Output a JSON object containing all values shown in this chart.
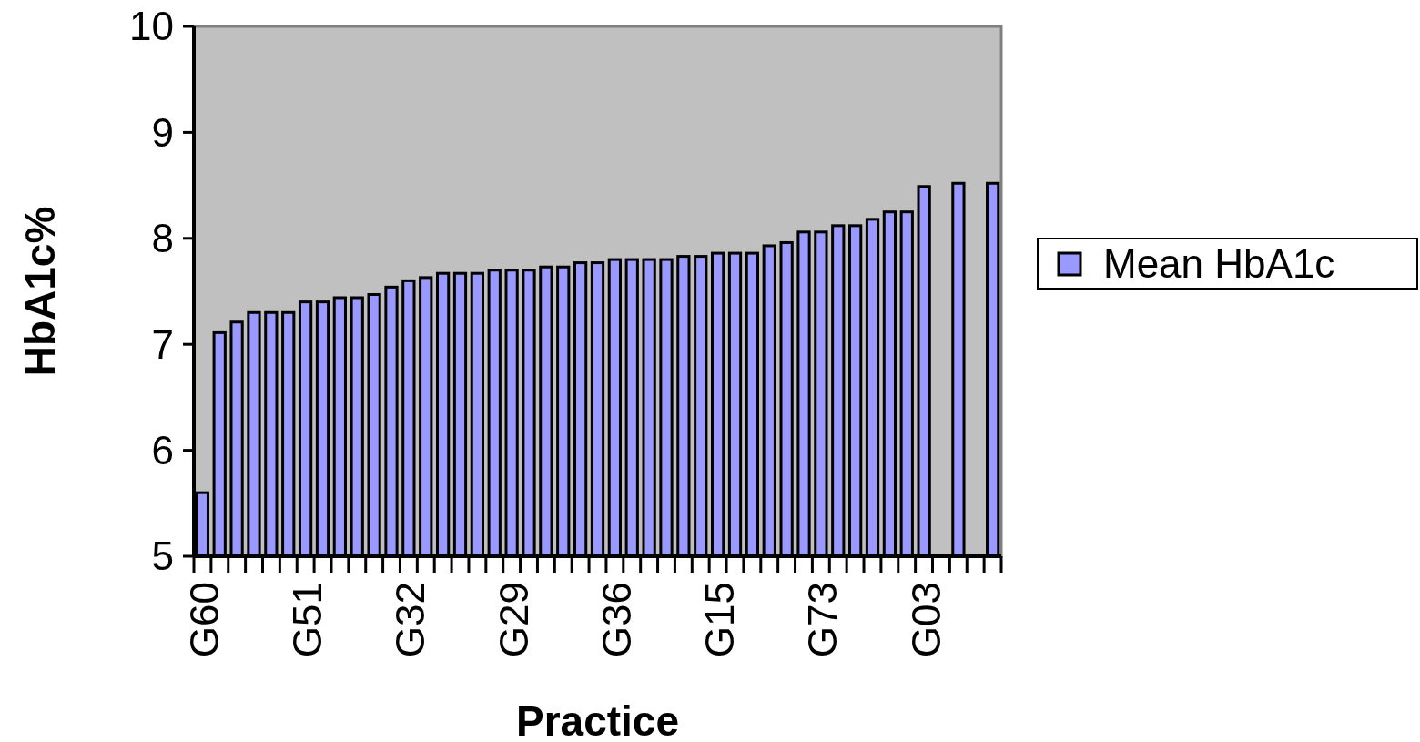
{
  "chart_data": {
    "type": "bar",
    "xlabel": "Practice",
    "ylabel": "HbA1c%",
    "categories": [
      "G60",
      null,
      null,
      null,
      null,
      null,
      "G51",
      null,
      null,
      null,
      null,
      null,
      "G32",
      null,
      null,
      null,
      null,
      null,
      "G29",
      null,
      null,
      null,
      null,
      null,
      "G36",
      null,
      null,
      null,
      null,
      null,
      "G15",
      null,
      null,
      null,
      null,
      null,
      "G73",
      null,
      null,
      null,
      null,
      null,
      "G03",
      null,
      null,
      null,
      null
    ],
    "series": [
      {
        "name": "Mean HbA1c",
        "color": "#9999ff",
        "values": [
          5.6,
          7.11,
          7.21,
          7.3,
          7.3,
          7.3,
          7.4,
          7.4,
          7.44,
          7.44,
          7.47,
          7.54,
          7.6,
          7.63,
          7.67,
          7.67,
          7.67,
          7.7,
          7.7,
          7.7,
          7.73,
          7.73,
          7.77,
          7.77,
          7.8,
          7.8,
          7.8,
          7.8,
          7.83,
          7.83,
          7.86,
          7.86,
          7.86,
          7.93,
          7.96,
          8.06,
          8.06,
          8.12,
          8.12,
          8.18,
          8.25,
          8.25,
          8.49,
          null,
          8.52,
          null,
          8.52
        ]
      }
    ],
    "ylim": [
      5,
      10
    ],
    "yticks": [
      5,
      6,
      7,
      8,
      9,
      10
    ],
    "grid": false,
    "legend": "right"
  }
}
